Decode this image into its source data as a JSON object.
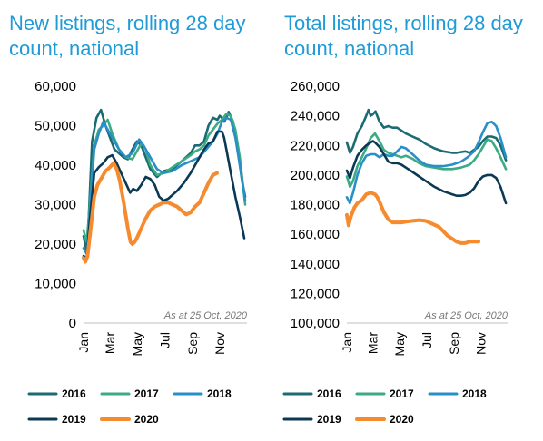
{
  "chart_data": [
    {
      "type": "line",
      "title": "New listings, rolling 28 day count, national",
      "note": "As at 25 Oct, 2020",
      "yticks": [
        "0",
        "10,000",
        "20,000",
        "30,000",
        "40,000",
        "50,000",
        "60,000"
      ],
      "ylim": [
        0,
        60000
      ],
      "xticks": [
        "Jan",
        "Mar",
        "May",
        "Jul",
        "Sep",
        "Nov"
      ],
      "legend_position": "bottom",
      "grid": false,
      "series": [
        {
          "name": "2016",
          "color": "#1a6b72",
          "x": [
            1,
            8,
            12,
            20,
            30,
            40,
            50,
            60,
            70,
            80,
            90,
            100,
            110,
            120,
            130,
            140,
            150,
            165,
            180,
            200,
            220,
            240,
            250,
            260,
            270,
            280,
            290,
            300,
            305,
            310,
            315,
            320,
            325,
            335,
            345,
            355,
            362
          ],
          "y": [
            22000,
            18000,
            25000,
            46000,
            52000,
            54000,
            50000,
            47000,
            44000,
            43000,
            42000,
            41500,
            44000,
            46000,
            45000,
            42000,
            39000,
            37000,
            38500,
            39000,
            41000,
            43000,
            45000,
            45000,
            46000,
            50000,
            52000,
            51500,
            52500,
            52000,
            51000,
            52000,
            53500,
            51000,
            44000,
            36000,
            32000
          ]
        },
        {
          "name": "2017",
          "color": "#3cab84",
          "x": [
            1,
            8,
            15,
            25,
            35,
            45,
            55,
            65,
            80,
            95,
            110,
            120,
            130,
            140,
            150,
            165,
            180,
            200,
            220,
            240,
            250,
            260,
            270,
            280,
            290,
            300,
            310,
            320,
            330,
            340,
            350,
            362
          ],
          "y": [
            23500,
            20500,
            30000,
            45000,
            49000,
            50000,
            51500,
            48000,
            44000,
            42000,
            41500,
            43500,
            45500,
            44000,
            40000,
            37500,
            38000,
            39500,
            41000,
            42500,
            43500,
            44000,
            45000,
            47500,
            49000,
            50500,
            51500,
            53000,
            52500,
            49000,
            42000,
            30000
          ]
        },
        {
          "name": "2018",
          "color": "#2a8fc8",
          "x": [
            1,
            8,
            15,
            25,
            35,
            45,
            55,
            65,
            80,
            95,
            110,
            125,
            135,
            150,
            165,
            180,
            200,
            220,
            240,
            260,
            275,
            290,
            300,
            310,
            320,
            330,
            340,
            350,
            362
          ],
          "y": [
            19000,
            17500,
            28000,
            44000,
            48000,
            51000,
            49000,
            47000,
            44000,
            42000,
            43000,
            46500,
            45000,
            42000,
            39000,
            38000,
            38500,
            40000,
            41000,
            42000,
            44000,
            46000,
            48000,
            51000,
            52000,
            51500,
            47000,
            40000,
            31000
          ]
        },
        {
          "name": "2019",
          "color": "#0b3954",
          "x": [
            1,
            8,
            15,
            25,
            35,
            45,
            55,
            65,
            75,
            85,
            95,
            105,
            112,
            120,
            130,
            140,
            150,
            160,
            170,
            180,
            190,
            200,
            210,
            225,
            240,
            250,
            260,
            270,
            280,
            290,
            300,
            310,
            315,
            320,
            330,
            340,
            350,
            360
          ],
          "y": [
            17000,
            16500,
            26000,
            38000,
            39500,
            40500,
            42000,
            42500,
            40500,
            38000,
            35500,
            33000,
            34000,
            33500,
            35000,
            37000,
            36500,
            35000,
            32000,
            31000,
            31500,
            32500,
            33500,
            35500,
            38000,
            40000,
            42000,
            44000,
            45500,
            46000,
            48500,
            48500,
            47000,
            44000,
            38000,
            32000,
            27000,
            21500
          ]
        },
        {
          "name": "2020",
          "color": "#f58b2e",
          "x": [
            1,
            5,
            10,
            18,
            25,
            32,
            40,
            50,
            60,
            68,
            75,
            82,
            90,
            100,
            106,
            110,
            115,
            120,
            130,
            140,
            150,
            160,
            170,
            180,
            190,
            200,
            210,
            220,
            230,
            240,
            250,
            260,
            270,
            280,
            290,
            299
          ],
          "y": [
            16500,
            15500,
            17000,
            25000,
            32000,
            35000,
            36500,
            38500,
            39500,
            40500,
            39000,
            36000,
            31000,
            24000,
            20500,
            20000,
            20500,
            21500,
            24000,
            26500,
            28500,
            29500,
            30000,
            30500,
            30500,
            30000,
            29500,
            28500,
            27500,
            28000,
            29500,
            30500,
            33000,
            35500,
            37500,
            38000
          ]
        }
      ]
    },
    {
      "type": "line",
      "title": "Total listings, rolling 28 day count, national",
      "note": "As at 25 Oct, 2020",
      "yticks": [
        "100,000",
        "120,000",
        "140,000",
        "160,000",
        "180,000",
        "200,000",
        "220,000",
        "240,000",
        "260,000"
      ],
      "ylim": [
        100000,
        260000
      ],
      "xticks": [
        "Jan",
        "Mar",
        "May",
        "Jul",
        "Sep",
        "Nov"
      ],
      "legend_position": "bottom",
      "grid": false,
      "series": [
        {
          "name": "2016",
          "color": "#1a6b72",
          "x": [
            1,
            8,
            15,
            25,
            35,
            45,
            50,
            55,
            60,
            66,
            75,
            85,
            95,
            105,
            115,
            125,
            135,
            150,
            165,
            180,
            200,
            220,
            240,
            250,
            260,
            270,
            280,
            290,
            300,
            310,
            320,
            330,
            340,
            350,
            362
          ],
          "y": [
            222000,
            215000,
            219000,
            228000,
            233000,
            240000,
            244000,
            240000,
            241000,
            243000,
            236000,
            232000,
            233000,
            232000,
            232000,
            230000,
            228000,
            226000,
            224000,
            221000,
            218000,
            216000,
            215000,
            215000,
            215500,
            216000,
            215000,
            217000,
            219000,
            223000,
            226000,
            226000,
            225000,
            220000,
            210000
          ]
        },
        {
          "name": "2017",
          "color": "#3cab84",
          "x": [
            1,
            8,
            15,
            25,
            35,
            45,
            55,
            65,
            75,
            85,
            95,
            105,
            115,
            125,
            135,
            150,
            165,
            180,
            200,
            220,
            240,
            260,
            280,
            290,
            300,
            310,
            320,
            330,
            340,
            350,
            362
          ],
          "y": [
            199000,
            192000,
            196000,
            206000,
            212000,
            218000,
            225000,
            228000,
            223000,
            217000,
            215000,
            214000,
            213000,
            212000,
            213000,
            211000,
            208000,
            206000,
            205000,
            204000,
            204000,
            205000,
            207000,
            210000,
            214000,
            219000,
            224000,
            223000,
            218000,
            212000,
            204000
          ]
        },
        {
          "name": "2018",
          "color": "#2a8fc8",
          "x": [
            1,
            8,
            15,
            25,
            35,
            45,
            55,
            65,
            75,
            85,
            95,
            105,
            115,
            125,
            135,
            150,
            165,
            180,
            200,
            220,
            240,
            260,
            275,
            290,
            300,
            310,
            320,
            330,
            340,
            350,
            362
          ],
          "y": [
            185000,
            181000,
            188000,
            200000,
            208000,
            213000,
            214000,
            214000,
            212000,
            214000,
            213000,
            213000,
            216000,
            219000,
            218000,
            214000,
            210000,
            207000,
            206000,
            206000,
            207000,
            209000,
            212000,
            216000,
            222000,
            229000,
            235000,
            236000,
            233000,
            225000,
            212000
          ]
        },
        {
          "name": "2019",
          "color": "#0b3954",
          "x": [
            1,
            8,
            15,
            25,
            35,
            45,
            55,
            60,
            65,
            75,
            85,
            95,
            105,
            115,
            125,
            135,
            150,
            165,
            180,
            200,
            220,
            240,
            250,
            260,
            270,
            280,
            290,
            300,
            310,
            320,
            330,
            340,
            350,
            362
          ],
          "y": [
            203000,
            198000,
            205000,
            213000,
            217000,
            220000,
            222000,
            223000,
            222000,
            219000,
            214000,
            209000,
            208000,
            208000,
            207000,
            205000,
            202000,
            199000,
            196000,
            192000,
            189000,
            187000,
            186000,
            186000,
            186500,
            188000,
            191000,
            196000,
            199000,
            200000,
            200000,
            198000,
            192000,
            181000
          ]
        },
        {
          "name": "2020",
          "color": "#f58b2e",
          "x": [
            1,
            5,
            10,
            18,
            25,
            35,
            45,
            55,
            65,
            70,
            75,
            85,
            95,
            105,
            115,
            125,
            135,
            150,
            165,
            180,
            195,
            210,
            220,
            230,
            240,
            250,
            260,
            270,
            280,
            290,
            300
          ],
          "y": [
            173000,
            166000,
            172000,
            178000,
            181000,
            183000,
            187000,
            188000,
            187000,
            185000,
            182000,
            175000,
            170000,
            168000,
            168000,
            168000,
            168500,
            169000,
            169500,
            169000,
            167000,
            165000,
            162000,
            159000,
            157000,
            155000,
            154000,
            154000,
            155000,
            155000,
            155000
          ]
        }
      ]
    }
  ]
}
